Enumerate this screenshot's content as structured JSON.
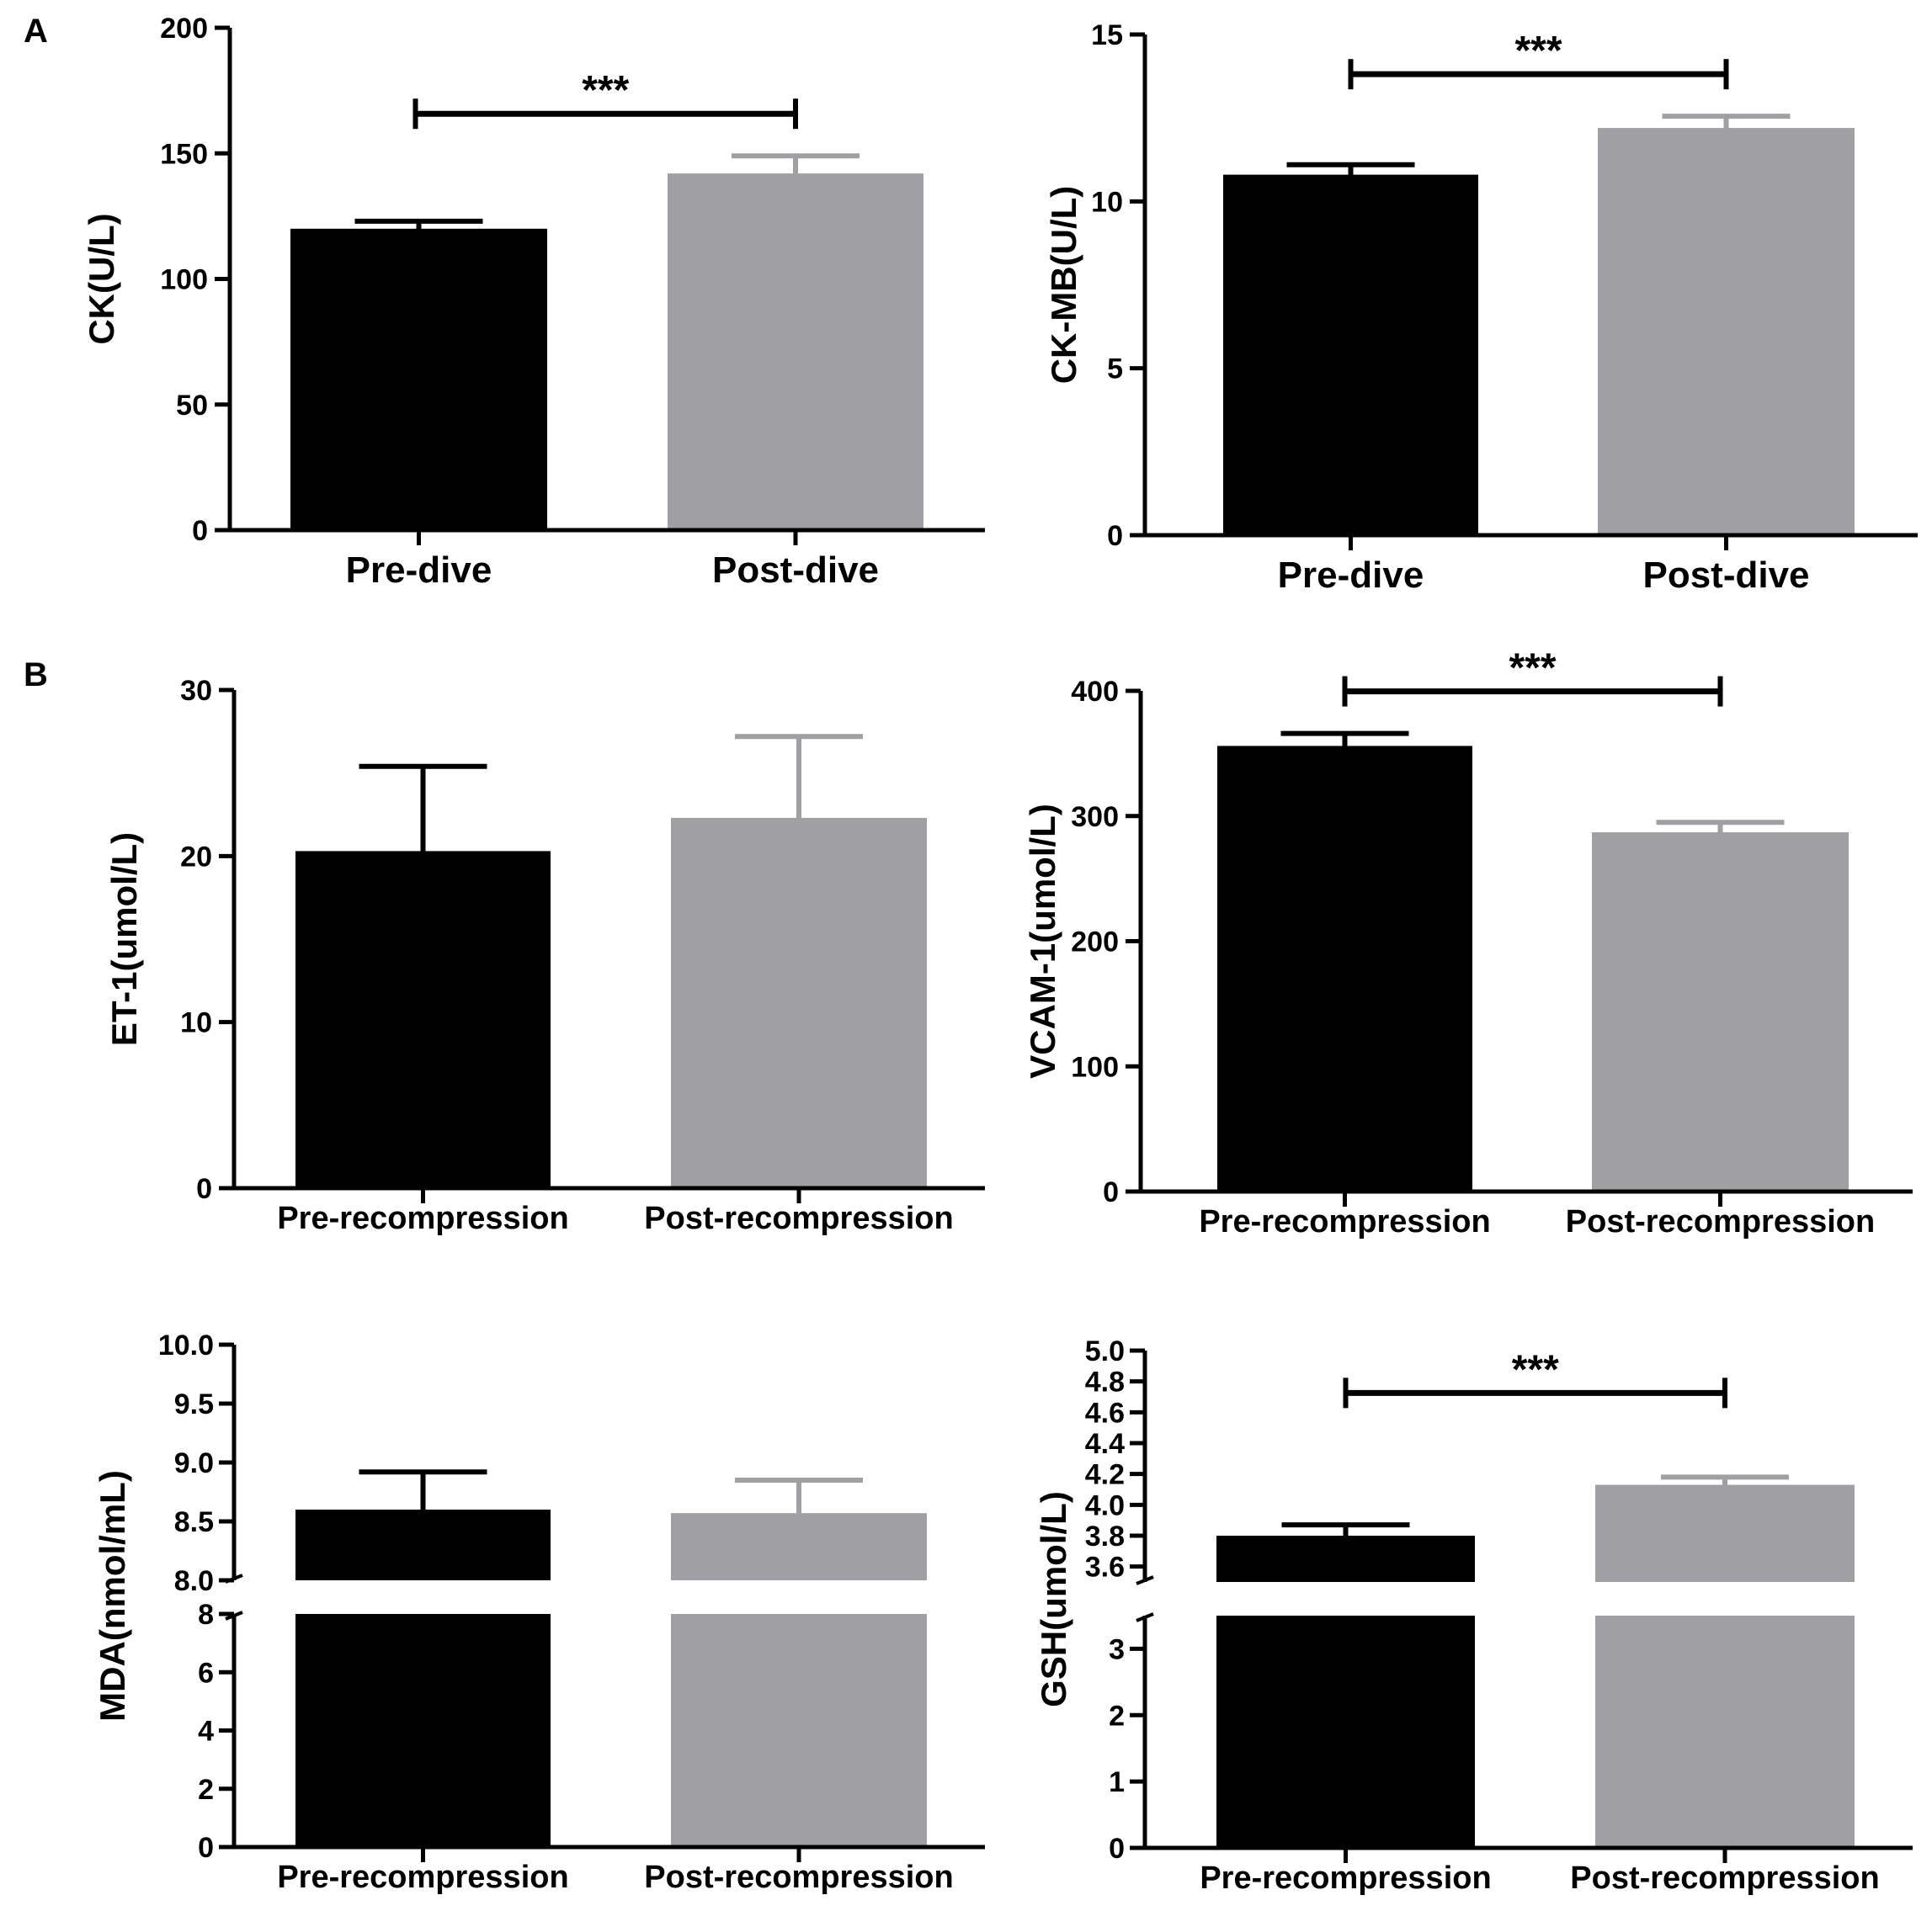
{
  "figure": {
    "panel_labels": [
      "A",
      "B"
    ],
    "colors": {
      "pre": "#000000",
      "post": "#a0a0a4",
      "axis": "#000000"
    }
  },
  "chart_data": [
    {
      "id": "ck",
      "type": "bar",
      "title": "",
      "ylabel": "CK(U/L)",
      "categories": [
        "Pre-dive",
        "Post-dive"
      ],
      "values": [
        120,
        142
      ],
      "errors": [
        3,
        7
      ],
      "ylim": [
        0,
        200
      ],
      "yticks": [
        0,
        50,
        100,
        150,
        200
      ],
      "ytick_labels": [
        "0",
        "50",
        "100",
        "150",
        "200"
      ],
      "significance": "***"
    },
    {
      "id": "ckmb",
      "type": "bar",
      "title": "",
      "ylabel": "CK-MB(U/L)",
      "categories": [
        "Pre-dive",
        "Post-dive"
      ],
      "values": [
        10.8,
        12.2
      ],
      "errors": [
        0.3,
        0.35
      ],
      "ylim": [
        0,
        15
      ],
      "yticks": [
        0,
        5,
        10,
        15
      ],
      "ytick_labels": [
        "0",
        "5",
        "10",
        "15"
      ],
      "significance": "***"
    },
    {
      "id": "et1",
      "type": "bar",
      "title": "",
      "ylabel": "ET-1(umol/L)",
      "categories": [
        "Pre-recompression",
        "Post-recompression"
      ],
      "values": [
        20.3,
        22.3
      ],
      "errors": [
        5.1,
        4.9
      ],
      "ylim": [
        0,
        30
      ],
      "yticks": [
        0,
        10,
        20,
        30
      ],
      "ytick_labels": [
        "0",
        "10",
        "20",
        "30"
      ],
      "significance": ""
    },
    {
      "id": "vcam1",
      "type": "bar",
      "title": "",
      "ylabel": "VCAM-1(umol/L)",
      "categories": [
        "Pre-recompression",
        "Post-recompression"
      ],
      "values": [
        356,
        287
      ],
      "errors": [
        10,
        8
      ],
      "ylim": [
        0,
        400
      ],
      "yticks": [
        0,
        100,
        200,
        300,
        400
      ],
      "ytick_labels": [
        "0",
        "100",
        "200",
        "300",
        "400"
      ],
      "significance": "***"
    },
    {
      "id": "mda",
      "type": "bar",
      "title": "",
      "ylabel": "MDA(nmol/mL)",
      "categories": [
        "Pre-recompression",
        "Post-recompression"
      ],
      "values": [
        8.6,
        8.57
      ],
      "errors": [
        0.32,
        0.28
      ],
      "broken_axis": true,
      "lower_ylim": [
        0,
        8
      ],
      "lower_yticks": [
        0,
        2,
        4,
        6,
        8
      ],
      "lower_ytick_labels": [
        "0",
        "2",
        "4",
        "6",
        "8"
      ],
      "upper_ylim": [
        8.0,
        10.0
      ],
      "upper_yticks": [
        8.0,
        8.5,
        9.0,
        9.5,
        10.0
      ],
      "upper_ytick_labels": [
        "8.0",
        "8.5",
        "9.0",
        "9.5",
        "10.0"
      ],
      "significance": ""
    },
    {
      "id": "gsh",
      "type": "bar",
      "title": "",
      "ylabel": "GSH(umol/L)",
      "categories": [
        "Pre-recompression",
        "Post-recompression"
      ],
      "values": [
        3.8,
        4.13
      ],
      "errors": [
        0.07,
        0.05
      ],
      "broken_axis": true,
      "lower_ylim": [
        0,
        3.5
      ],
      "lower_yticks": [
        0,
        1,
        2,
        3
      ],
      "lower_ytick_labels": [
        "0",
        "1",
        "2",
        "3"
      ],
      "upper_ylim": [
        3.5,
        5.0
      ],
      "upper_yticks": [
        3.6,
        3.8,
        4.0,
        4.2,
        4.4,
        4.6,
        4.8,
        5.0
      ],
      "upper_ytick_labels": [
        "3.6",
        "3.8",
        "4.0",
        "4.2",
        "4.4",
        "4.6",
        "4.8",
        "5.0"
      ],
      "significance": "***"
    }
  ]
}
